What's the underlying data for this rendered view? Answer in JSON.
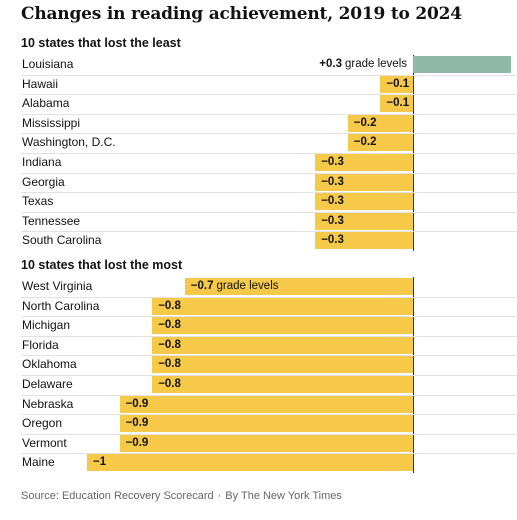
{
  "chart_data": {
    "type": "bar",
    "title": "Changes in reading achievement, 2019 to 2024",
    "unit": "grade levels",
    "groups": [
      {
        "title": "10 states that lost the least",
        "categories": [
          "Louisiana",
          "Hawaii",
          "Alabama",
          "Mississippi",
          "Washington, D.C.",
          "Indiana",
          "Georgia",
          "Texas",
          "Tennessee",
          "South Carolina"
        ],
        "values": [
          0.3,
          -0.1,
          -0.1,
          -0.2,
          -0.2,
          -0.3,
          -0.3,
          -0.3,
          -0.3,
          -0.3
        ],
        "value_labels": [
          "+0.3",
          "−0.1",
          "−0.1",
          "−0.2",
          "−0.2",
          "−0.3",
          "−0.3",
          "−0.3",
          "−0.3",
          "−0.3"
        ]
      },
      {
        "title": "10 states that lost the most",
        "categories": [
          "West Virginia",
          "North Carolina",
          "Michigan",
          "Florida",
          "Oklahoma",
          "Delaware",
          "Nebraska",
          "Oregon",
          "Vermont",
          "Maine"
        ],
        "values": [
          -0.7,
          -0.8,
          -0.8,
          -0.8,
          -0.8,
          -0.8,
          -0.9,
          -0.9,
          -0.9,
          -1.0
        ],
        "value_labels": [
          "−0.7",
          "−0.8",
          "−0.8",
          "−0.8",
          "−0.8",
          "−0.8",
          "−0.9",
          "−0.9",
          "−0.9",
          "−1"
        ]
      }
    ],
    "colors": {
      "positive": "#8fb8a8",
      "negative": "#f7c948"
    },
    "xlim": [
      -1.0,
      0.3
    ],
    "source": "Source: Education Recovery Scorecard",
    "byline": "By The New York Times"
  }
}
